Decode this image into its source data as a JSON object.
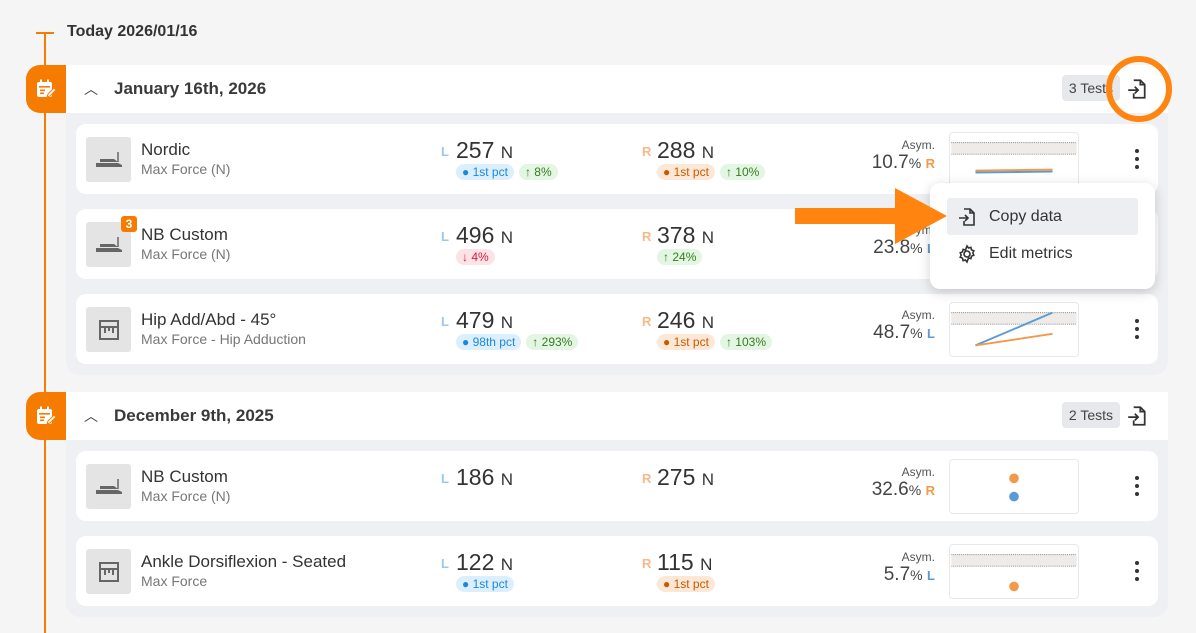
{
  "timeline": {
    "today_label": "Today 2026/01/16",
    "accent": "#f57c00"
  },
  "groups": [
    {
      "date": "January 16th, 2026",
      "tests_label": "3 Tests",
      "tests": [
        {
          "name": "Nordic",
          "metric": "Max Force (N)",
          "icon": "nordic-icon",
          "left": {
            "side": "L",
            "value": "257",
            "unit": "N",
            "pills": [
              {
                "text": "1st pct",
                "kind": "percentile"
              },
              {
                "text": "8%",
                "kind": "up"
              }
            ]
          },
          "right": {
            "side": "R",
            "value": "288",
            "unit": "N",
            "pills": [
              {
                "text": "1st pct",
                "kind": "percentile"
              },
              {
                "text": "10%",
                "kind": "up"
              }
            ]
          },
          "asym": {
            "label": "Asym.",
            "value": "10.7",
            "unit": "%",
            "side": "R"
          }
        },
        {
          "name": "NB Custom",
          "metric": "Max Force (N)",
          "icon": "nordic-icon",
          "badge": "3",
          "left": {
            "side": "L",
            "value": "496",
            "unit": "N",
            "pills": [
              {
                "text": "4%",
                "kind": "down"
              }
            ]
          },
          "right": {
            "side": "R",
            "value": "378",
            "unit": "N",
            "pills": [
              {
                "text": "24%",
                "kind": "up"
              }
            ]
          },
          "asym": {
            "label": "Asym.",
            "value": "23.8",
            "unit": "%",
            "side": "L"
          }
        },
        {
          "name": "Hip Add/Abd - 45°",
          "metric": "Max Force - Hip Adduction",
          "icon": "frame-icon",
          "left": {
            "side": "L",
            "value": "479",
            "unit": "N",
            "pills": [
              {
                "text": "98th pct",
                "kind": "percentile"
              },
              {
                "text": "293%",
                "kind": "up"
              }
            ]
          },
          "right": {
            "side": "R",
            "value": "246",
            "unit": "N",
            "pills": [
              {
                "text": "1st pct",
                "kind": "percentile"
              },
              {
                "text": "103%",
                "kind": "up"
              }
            ]
          },
          "asym": {
            "label": "Asym.",
            "value": "48.7",
            "unit": "%",
            "side": "L"
          }
        }
      ]
    },
    {
      "date": "December 9th, 2025",
      "tests_label": "2 Tests",
      "tests": [
        {
          "name": "NB Custom",
          "metric": "Max Force (N)",
          "icon": "nordic-icon",
          "left": {
            "side": "L",
            "value": "186",
            "unit": "N"
          },
          "right": {
            "side": "R",
            "value": "275",
            "unit": "N"
          },
          "asym": {
            "label": "Asym.",
            "value": "32.6",
            "unit": "%",
            "side": "R"
          }
        },
        {
          "name": "Ankle Dorsiflexion - Seated",
          "metric": "Max Force",
          "icon": "frame-icon",
          "left": {
            "side": "L",
            "value": "122",
            "unit": "N",
            "pills": [
              {
                "text": "1st pct",
                "kind": "percentile"
              }
            ]
          },
          "right": {
            "side": "R",
            "value": "115",
            "unit": "N",
            "pills": [
              {
                "text": "1st pct",
                "kind": "percentile"
              }
            ]
          },
          "asym": {
            "label": "Asym.",
            "value": "5.7",
            "unit": "%",
            "side": "L"
          }
        }
      ]
    }
  ],
  "menu": {
    "items": [
      {
        "label": "Copy data",
        "icon": "copy-export-icon"
      },
      {
        "label": "Edit metrics",
        "icon": "gear-icon"
      }
    ]
  },
  "colors": {
    "left": "#5b9bd5",
    "right": "#f2994a",
    "left_label": "#9cc8f0",
    "right_label": "#f7b98a"
  }
}
